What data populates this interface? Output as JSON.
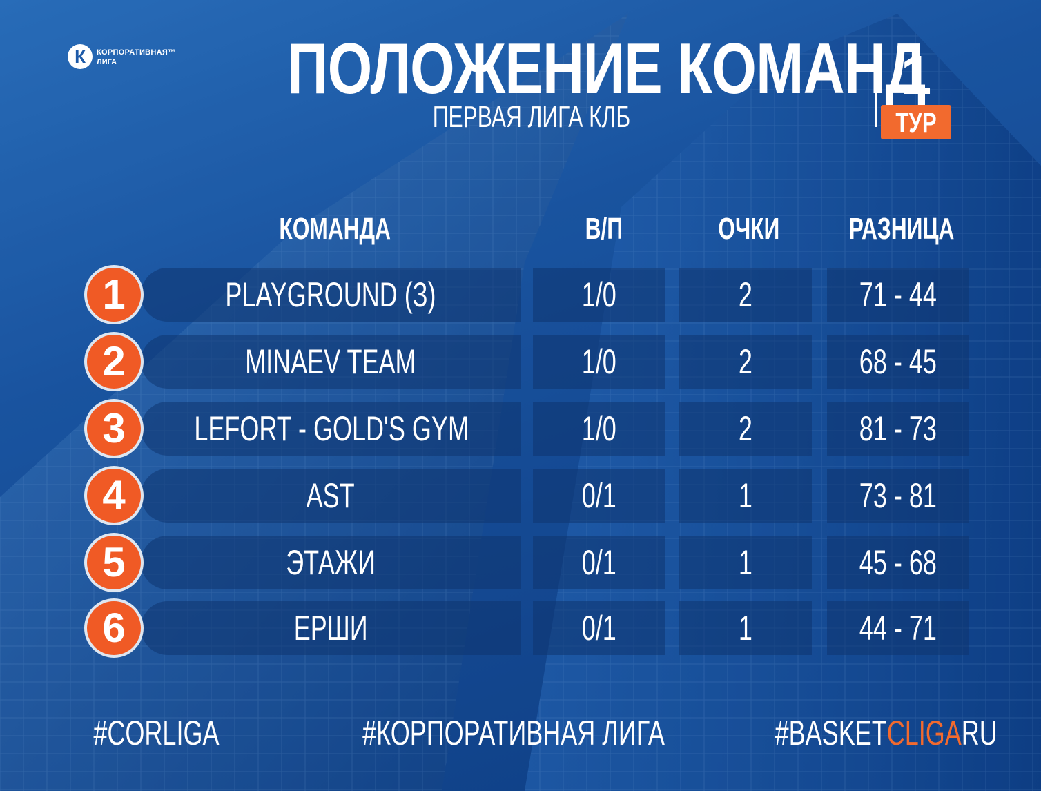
{
  "logo": {
    "line1": "КОРПОРАТИВНАЯ™",
    "line2": "ЛИГА",
    "mark": "К"
  },
  "title": "ПОЛОЖЕНИЕ КОМАНД",
  "subtitle": "ПЕРВАЯ ЛИГА КЛБ",
  "round": {
    "number": "1",
    "label": "ТУР"
  },
  "table": {
    "headers": {
      "team": "КОМАНДА",
      "wl": "В/П",
      "points": "ОЧКИ",
      "diff": "РАЗНИЦА"
    },
    "rows": [
      {
        "rank": "1",
        "team": "PLAYGROUND (З)",
        "wl": "1/0",
        "points": "2",
        "diff": "71 - 44"
      },
      {
        "rank": "2",
        "team": "MINAEV TEAM",
        "wl": "1/0",
        "points": "2",
        "diff": "68 - 45"
      },
      {
        "rank": "3",
        "team": "LEFORT - GOLD'S GYM",
        "wl": "1/0",
        "points": "2",
        "diff": "81 - 73"
      },
      {
        "rank": "4",
        "team": "AST",
        "wl": "0/1",
        "points": "1",
        "diff": "73 - 81"
      },
      {
        "rank": "5",
        "team": "ЭТАЖИ",
        "wl": "0/1",
        "points": "1",
        "diff": "45 - 68"
      },
      {
        "rank": "6",
        "team": "ЕРШИ",
        "wl": "0/1",
        "points": "1",
        "diff": "44 - 71"
      }
    ]
  },
  "footer": {
    "tag1": "#CORLIGA",
    "tag2": "#КОРПОРАТИВНАЯ ЛИГА",
    "tag3_part1": "#BASKET",
    "tag3_part2": "CLIGA",
    "tag3_part3": "RU"
  },
  "colors": {
    "accent": "#f26a2e",
    "background": "#1d5aa8"
  }
}
